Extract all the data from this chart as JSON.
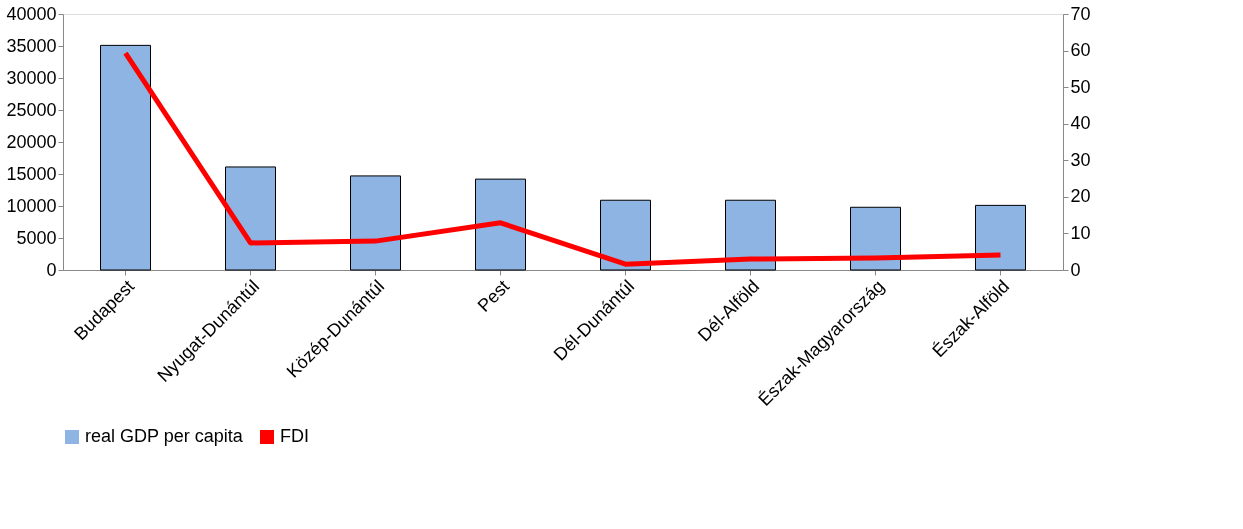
{
  "chart_data": {
    "type": "bar",
    "categories": [
      "Budapest",
      "Nyugat-Dunántúl",
      "Közép-Dunántúl",
      "Pest",
      "Dél-Dunántúl",
      "Dél-Alföld",
      "Észak-Magyarország",
      "Észak-Alföld"
    ],
    "series": [
      {
        "name": "real GDP per capita",
        "color": "#8db4e2",
        "values": [
          35100,
          16100,
          14700,
          14200,
          10900,
          10900,
          9800,
          10100
        ]
      },
      {
        "name": "FDI",
        "type": "line",
        "axis": "y2",
        "color": "#ff0000",
        "values": [
          59.3,
          7.4,
          7.9,
          12.9,
          1.6,
          3.0,
          3.3,
          4.1
        ]
      }
    ],
    "ylim": [
      0,
      40000
    ],
    "yticks": [
      0,
      5000,
      10000,
      15000,
      20000,
      25000,
      30000,
      35000,
      40000
    ],
    "y2lim": [
      0,
      70
    ],
    "y2ticks": [
      0,
      10,
      20,
      30,
      40,
      50,
      60,
      70
    ],
    "grid": false,
    "legend": "bottom",
    "marker": "none"
  }
}
